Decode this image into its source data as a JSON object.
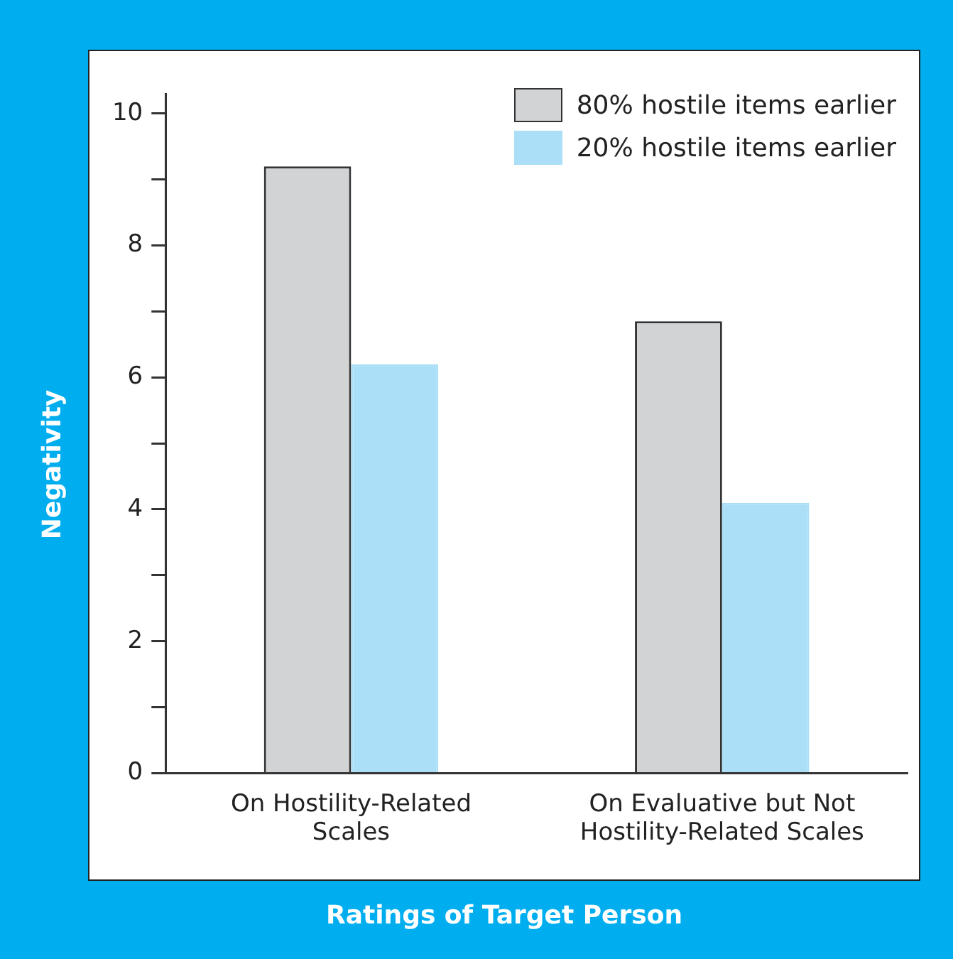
{
  "chart_data": {
    "type": "bar",
    "xlabel": "Ratings of Target Person",
    "ylabel": "Negativity",
    "categories": [
      "On Hostility-Related Scales",
      "On Evaluative but Not Hostility-Related Scales"
    ],
    "series": [
      {
        "name": "80% hostile items earlier",
        "color": "#d1d3d4",
        "values": [
          9.2,
          6.85
        ]
      },
      {
        "name": "20% hostile items earlier",
        "color": "#aadff7",
        "values": [
          6.2,
          4.1
        ]
      }
    ],
    "ylim": [
      0,
      10.3
    ],
    "yticks": [
      0,
      {
        "value": 1,
        "label": null
      },
      2,
      {
        "value": 3,
        "label": null
      },
      4,
      {
        "value": 5,
        "label": null
      },
      6,
      {
        "value": 7,
        "label": null
      },
      8,
      {
        "value": 9,
        "label": null
      },
      10
    ],
    "grid": false,
    "legend": "top right"
  }
}
